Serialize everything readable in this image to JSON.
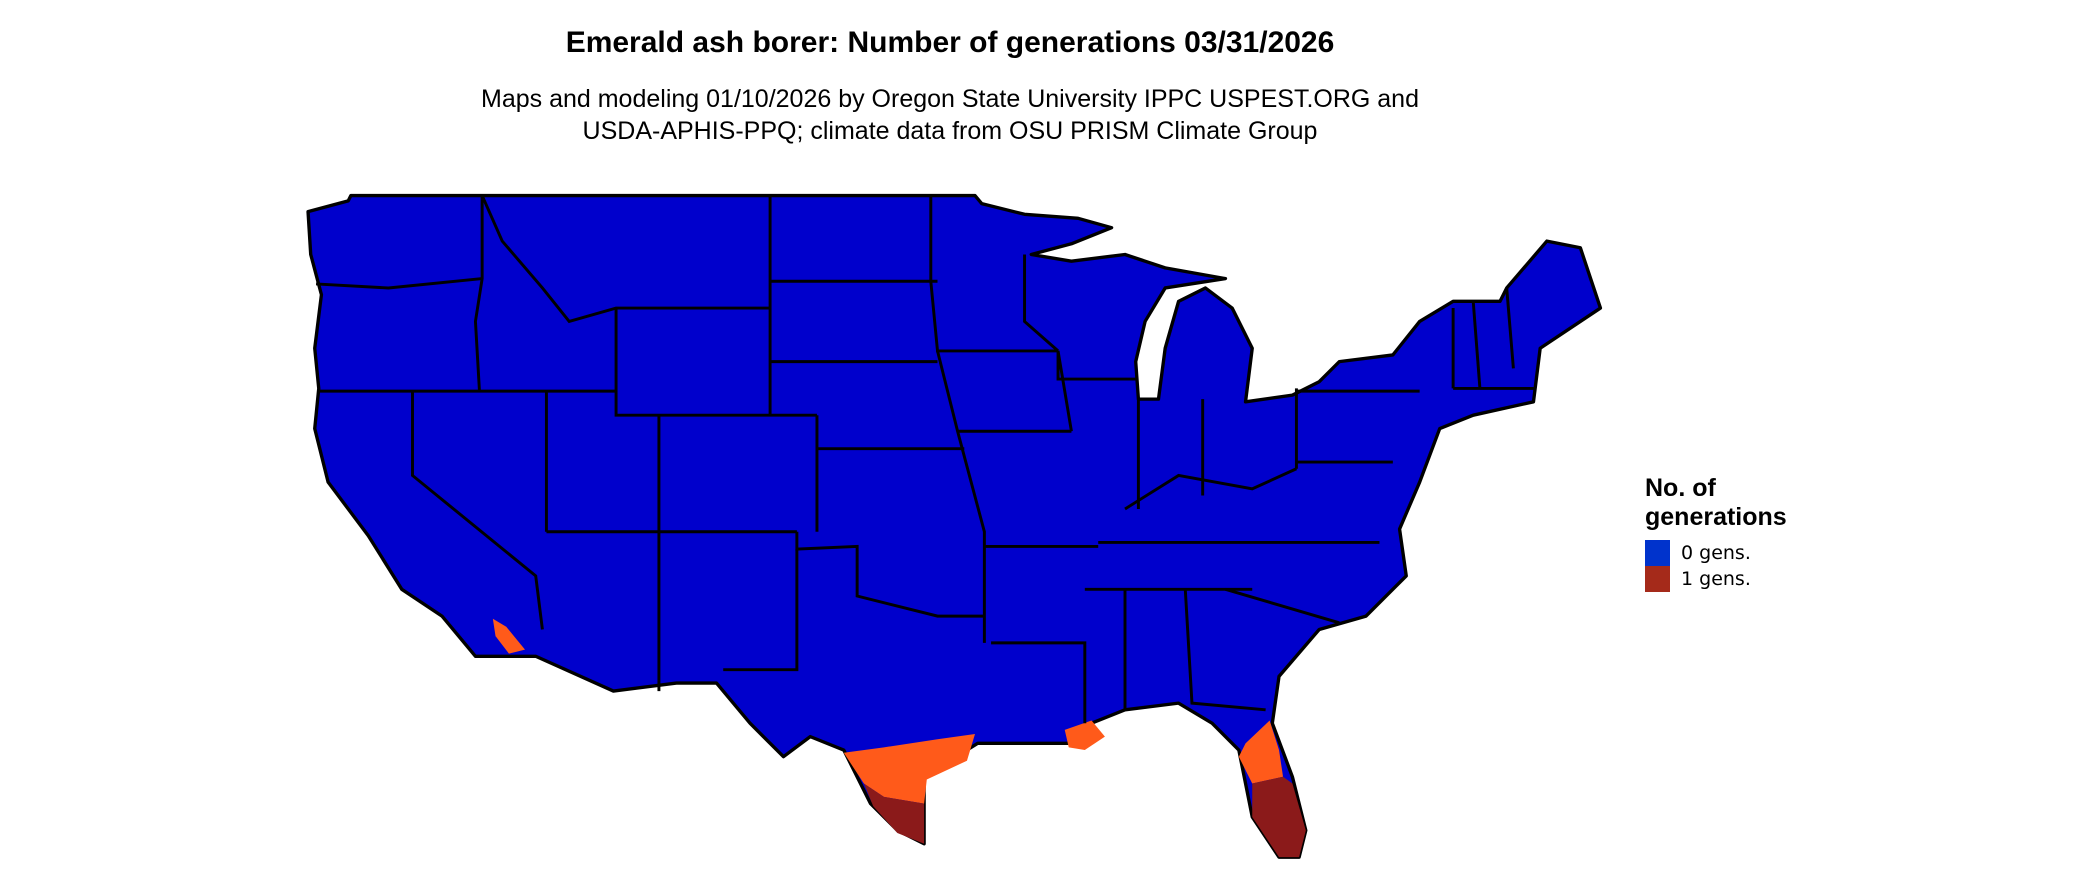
{
  "title": "Emerald ash borer: Number of generations 03/31/2026",
  "subtitle_line1": "Maps and modeling 01/10/2026 by Oregon State University IPPC USPEST.ORG and",
  "subtitle_line2": "USDA-APHIS-PPQ; climate data from OSU PRISM Climate Group",
  "legend": {
    "title_line1": "No. of",
    "title_line2": "generations",
    "items": [
      {
        "label": "0 gens.",
        "color": "#0033cc"
      },
      {
        "label": "1 gens.",
        "color": "#a52a1a"
      }
    ]
  },
  "colors": {
    "zero_gens": "#0000cc",
    "one_gen_dark": "#8b1a1a",
    "one_gen_light": "#ff5a1a",
    "borders": "#000000"
  }
}
